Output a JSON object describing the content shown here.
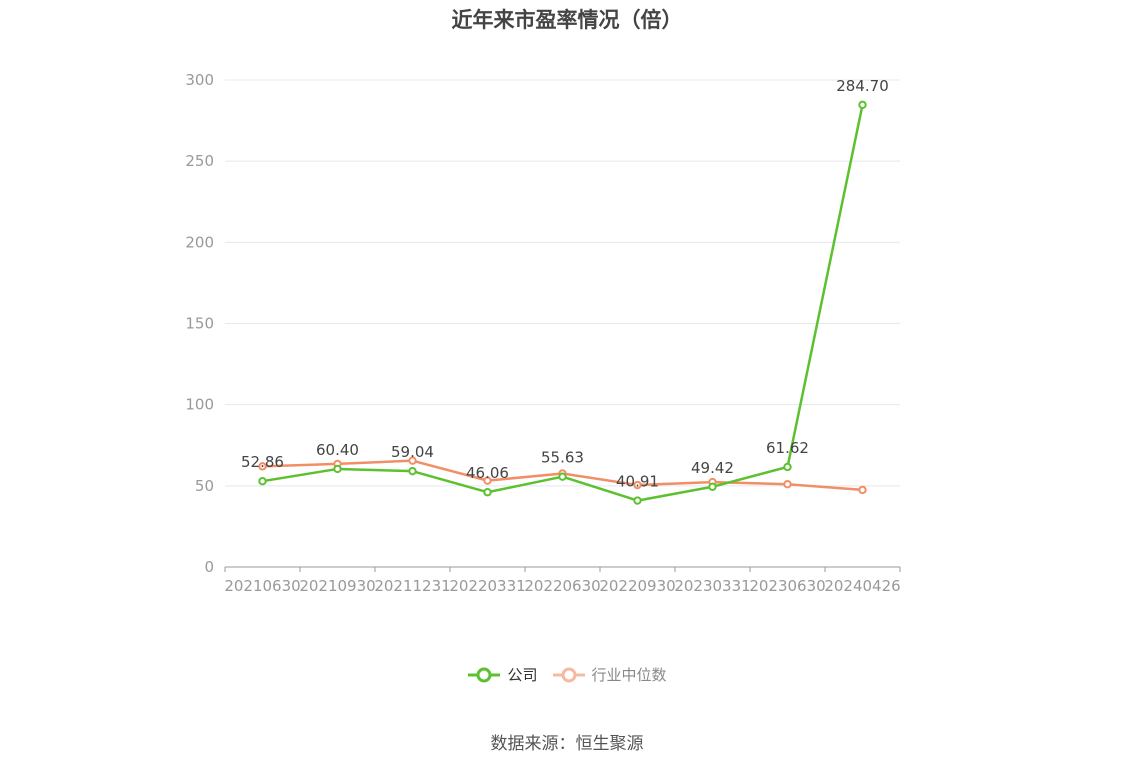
{
  "colors": {
    "company": "#5cc12e",
    "industry": "#f28e66",
    "industry_legend": "#f6b9a2",
    "grid": "#e6e8ee",
    "axis": "#999999",
    "tick_text": "#999999",
    "label_text": "#444444"
  },
  "legend": {
    "position": "bottom-center",
    "company_label": "公司",
    "industry_label": "行业中位数"
  },
  "source": "数据来源：恒生聚源",
  "chart_data": {
    "type": "line",
    "title": "近年来市盈率情况（倍）",
    "x": [
      "20210630",
      "20210930",
      "20211231",
      "20220331",
      "20220630",
      "20220930",
      "20230331",
      "20230630",
      "20240426"
    ],
    "ylim": [
      0,
      300
    ],
    "yticks": [
      0,
      50,
      100,
      150,
      200,
      250,
      300
    ],
    "grid": true,
    "series": [
      {
        "name": "公司",
        "values": [
          52.86,
          60.4,
          59.04,
          46.06,
          55.63,
          40.91,
          49.42,
          61.62,
          284.7
        ],
        "labels": [
          "52.86",
          "60.40",
          "59.04",
          "46.06",
          "55.63",
          "40.91",
          "49.42",
          "61.62",
          "284.70"
        ]
      },
      {
        "name": "行业中位数",
        "values": [
          62,
          63.5,
          65.5,
          53.2,
          57.6,
          50.5,
          52.3,
          51,
          47.5
        ]
      }
    ]
  }
}
